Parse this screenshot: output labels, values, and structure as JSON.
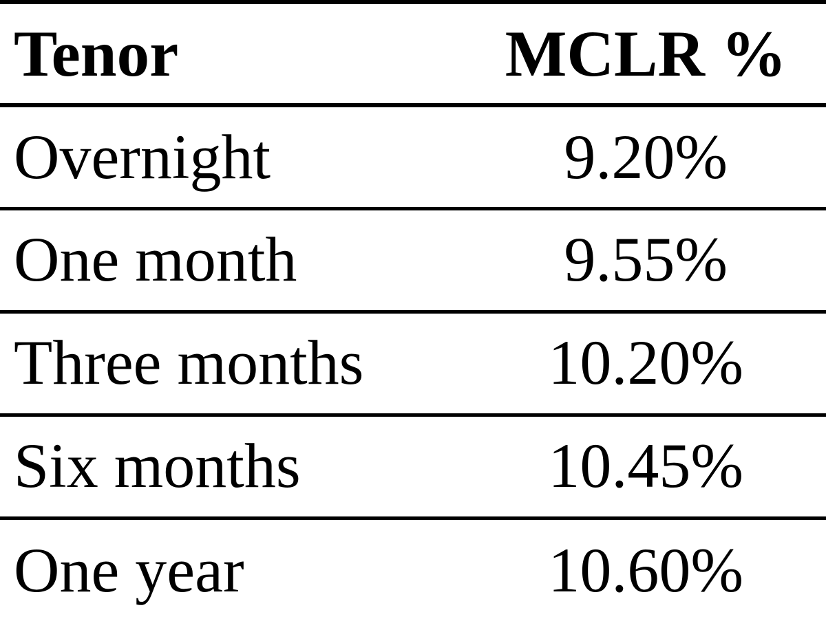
{
  "table": {
    "type": "table",
    "columns": [
      {
        "label": "Tenor",
        "align": "left"
      },
      {
        "label": "MCLR %",
        "align": "center"
      }
    ],
    "rows": [
      {
        "tenor": "Overnight",
        "rate": "9.20%"
      },
      {
        "tenor": "One month",
        "rate": "9.55%"
      },
      {
        "tenor": "Three months",
        "rate": "10.20%"
      },
      {
        "tenor": "Six months",
        "rate": "10.45%"
      },
      {
        "tenor": "One year",
        "rate": "10.60%"
      }
    ],
    "styling": {
      "background_color": "#ffffff",
      "text_color": "#000000",
      "border_color": "#000000",
      "header_border_width": 6,
      "row_border_width": 5,
      "font_family": "Book Antiqua, Palatino, serif",
      "header_fontsize": 95,
      "header_fontweight": 700,
      "cell_fontsize": 92,
      "cell_fontweight": 400
    }
  }
}
